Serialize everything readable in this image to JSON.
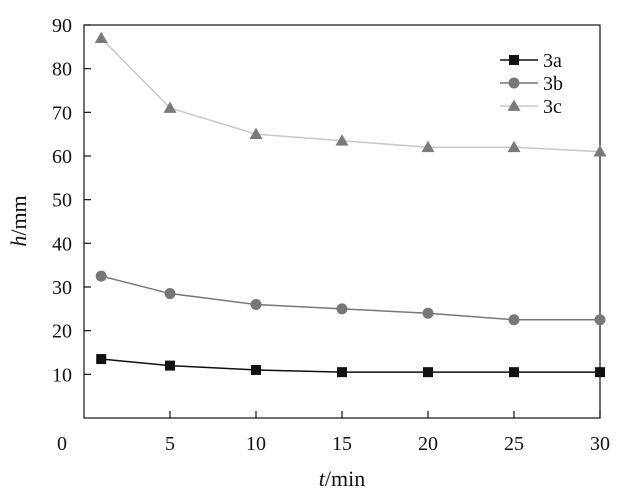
{
  "chart_data": {
    "type": "line",
    "title": "",
    "xlabel_italic": "t",
    "xlabel_unit": "/min",
    "ylabel_italic": "h",
    "ylabel_unit": "/mm",
    "xlim": [
      0,
      30
    ],
    "ylim": [
      0,
      90
    ],
    "xticks": [
      0,
      5,
      10,
      15,
      20,
      25,
      30
    ],
    "yticks": [
      10,
      20,
      30,
      40,
      50,
      60,
      70,
      80,
      90
    ],
    "grid": false,
    "legend_position": "top-right",
    "series": [
      {
        "name": "3a",
        "marker": "square",
        "color": "#111111",
        "x": [
          1,
          5,
          10,
          15,
          20,
          25,
          30
        ],
        "y": [
          13.5,
          12,
          11,
          10.5,
          10.5,
          10.5,
          10.5
        ]
      },
      {
        "name": "3b",
        "marker": "circle",
        "color": "#777777",
        "x": [
          1,
          5,
          10,
          15,
          20,
          25,
          30
        ],
        "y": [
          32.5,
          28.5,
          26,
          25,
          24,
          22.5,
          22.5
        ]
      },
      {
        "name": "3c",
        "marker": "triangle",
        "color": "#c8c8c8",
        "marker_color": "#7a7a7a",
        "x": [
          1,
          5,
          10,
          15,
          20,
          25,
          30
        ],
        "y": [
          87,
          71,
          65,
          63.5,
          62,
          62,
          61
        ]
      }
    ]
  }
}
